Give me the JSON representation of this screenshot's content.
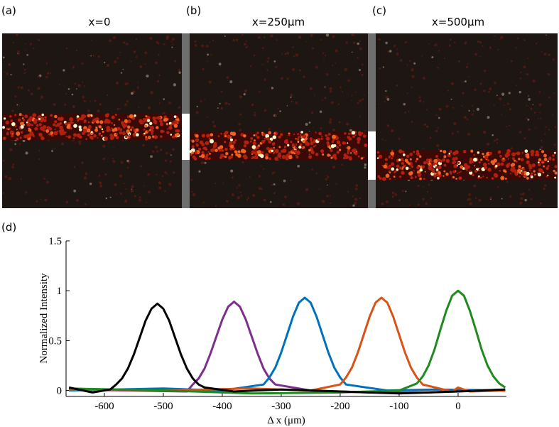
{
  "panels": [
    {
      "label": "(a)",
      "title": "x=0"
    },
    {
      "label": "(b)",
      "title": "x=250μm"
    },
    {
      "label": "(c)",
      "title": "x=500μm"
    }
  ],
  "chart_data": {
    "type": "line",
    "panel_label": "(d)",
    "x_label": "Δ x (μm)",
    "y_label": "Normalized Intensity",
    "xlim": [
      -665,
      82
    ],
    "ylim": [
      -0.06,
      1.5
    ],
    "xticks": [
      -600,
      -500,
      -400,
      -300,
      -200,
      -100,
      0
    ],
    "yticks": [
      0,
      0.5,
      1,
      1.5
    ],
    "series": [
      {
        "color": "#7e2f8e",
        "x": [
          -660,
          -560,
          -460,
          -450,
          -440,
          -430,
          -420,
          -410,
          -400,
          -390,
          -380,
          -370,
          -360,
          -350,
          -340,
          -330,
          -320,
          -310,
          -250,
          -150,
          -50,
          80
        ],
        "values": [
          0.01,
          0.0,
          -0.01,
          0.06,
          0.12,
          0.22,
          0.37,
          0.54,
          0.71,
          0.84,
          0.89,
          0.84,
          0.71,
          0.54,
          0.37,
          0.22,
          0.12,
          0.06,
          0.0,
          -0.02,
          -0.02,
          0.01
        ]
      },
      {
        "color": "#0072bd",
        "x": [
          -660,
          -500,
          -400,
          -330,
          -320,
          -310,
          -300,
          -290,
          -280,
          -270,
          -260,
          -250,
          -240,
          -230,
          -220,
          -210,
          -200,
          -190,
          -120,
          -40,
          80
        ],
        "values": [
          0.0,
          0.02,
          0.0,
          0.06,
          0.13,
          0.23,
          0.38,
          0.56,
          0.74,
          0.88,
          0.93,
          0.88,
          0.74,
          0.56,
          0.38,
          0.23,
          0.13,
          0.06,
          0.0,
          0.01,
          0.0
        ]
      },
      {
        "color": "#d95319",
        "x": [
          -660,
          -500,
          -350,
          -250,
          -200,
          -190,
          -180,
          -170,
          -160,
          -150,
          -140,
          -130,
          -120,
          -110,
          -100,
          -90,
          -80,
          -70,
          -60,
          -10,
          0,
          20,
          80
        ],
        "values": [
          0.01,
          0.0,
          0.02,
          0.0,
          0.06,
          0.13,
          0.23,
          0.38,
          0.56,
          0.74,
          0.88,
          0.93,
          0.88,
          0.74,
          0.56,
          0.38,
          0.23,
          0.13,
          0.06,
          -0.01,
          0.03,
          -0.01,
          0.0
        ]
      },
      {
        "color": "#1f8a1f",
        "x": [
          -660,
          -500,
          -350,
          -200,
          -100,
          -70,
          -60,
          -50,
          -40,
          -30,
          -20,
          -10,
          0,
          10,
          20,
          30,
          40,
          50,
          60,
          70,
          80
        ],
        "values": [
          0.02,
          0.0,
          -0.03,
          -0.02,
          0.0,
          0.07,
          0.14,
          0.25,
          0.41,
          0.61,
          0.8,
          0.95,
          1.0,
          0.95,
          0.8,
          0.61,
          0.41,
          0.25,
          0.14,
          0.07,
          0.03
        ]
      },
      {
        "color": "#000000",
        "x": [
          -660,
          -620,
          -590,
          -580,
          -570,
          -560,
          -550,
          -540,
          -530,
          -520,
          -510,
          -500,
          -490,
          -480,
          -470,
          -460,
          -450,
          -440,
          -430,
          -380,
          -300,
          -200,
          -100,
          0,
          80
        ],
        "values": [
          0.03,
          -0.02,
          0.01,
          0.06,
          0.12,
          0.22,
          0.36,
          0.53,
          0.7,
          0.82,
          0.87,
          0.82,
          0.7,
          0.53,
          0.36,
          0.22,
          0.12,
          0.06,
          0.03,
          -0.01,
          0.01,
          -0.01,
          -0.03,
          -0.01,
          0.01
        ]
      }
    ]
  }
}
